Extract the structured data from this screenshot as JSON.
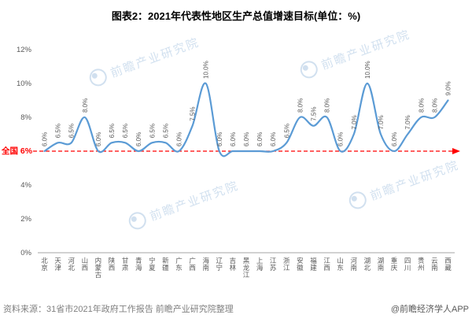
{
  "page": {
    "title": "图表2：2021年代表性地区生产总值增速目标(单位：%)",
    "source_note": "资料来源：31省市2021年政府工作报告 前瞻产业研究院整理",
    "credit": "@前瞻经济学人APP",
    "watermark": "前瞻产业研究院"
  },
  "chart_data": {
    "type": "line",
    "title": "图表2：2021年代表性地区生产总值增速目标(单位：%)",
    "categories": [
      "北京",
      "天津",
      "河北",
      "山西",
      "内蒙古",
      "陕西",
      "甘肃",
      "青海",
      "宁夏",
      "新疆",
      "广东",
      "广西",
      "海南",
      "辽宁",
      "吉林",
      "黑龙江",
      "上海",
      "江苏",
      "浙江",
      "安徽",
      "福建",
      "江西",
      "山东",
      "河南",
      "湖北",
      "湖南",
      "重庆",
      "四川",
      "贵州",
      "云南",
      "西藏"
    ],
    "values": [
      6.0,
      6.5,
      6.5,
      8.0,
      6.0,
      6.5,
      6.5,
      6.0,
      6.5,
      6.5,
      6.0,
      7.5,
      10.0,
      6.0,
      6.0,
      6.0,
      6.0,
      6.0,
      6.5,
      8.0,
      7.5,
      8.0,
      6.0,
      7.0,
      10.0,
      7.0,
      6.0,
      7.0,
      8.0,
      8.0,
      9.0
    ],
    "ylim": [
      0,
      12
    ],
    "yticks": [
      {
        "value": 12,
        "label": "12%"
      },
      {
        "value": 10,
        "label": "10%"
      },
      {
        "value": 8,
        "label": "8%"
      },
      {
        "value": 4,
        "label": "4%"
      },
      {
        "value": 2,
        "label": "2%"
      },
      {
        "value": 0,
        "label": "0%"
      }
    ],
    "reference_line": {
      "value": 6,
      "label": "全国 6%",
      "color": "#ff0000"
    },
    "line_color": "#5b9bd5",
    "label_color": "#595959",
    "axis_color": "#a6a6a6",
    "grid": false,
    "legend": false
  }
}
